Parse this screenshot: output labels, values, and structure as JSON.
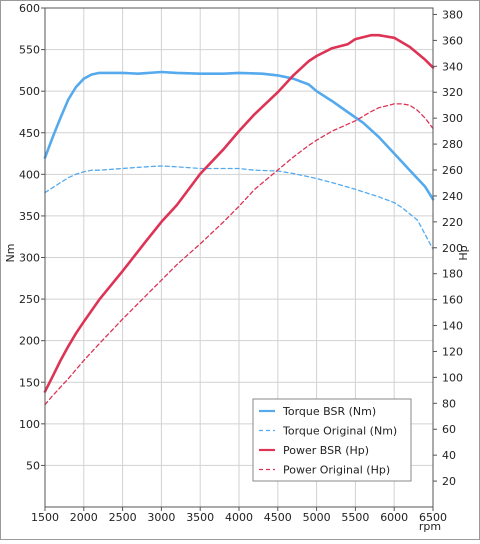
{
  "chart_data": {
    "type": "line",
    "xlabel": "rpm",
    "ylabel_left": "Nm",
    "ylabel_right": "Hp",
    "xlim": [
      1500,
      6500
    ],
    "ylim_left": [
      0,
      600
    ],
    "ylim_right": [
      0,
      385
    ],
    "x_ticks": [
      1500,
      2000,
      2500,
      3000,
      3500,
      4000,
      4500,
      5000,
      5500,
      6000,
      6500
    ],
    "y_left_ticks": [
      50,
      100,
      150,
      200,
      250,
      300,
      350,
      400,
      450,
      500,
      550,
      600
    ],
    "y_right_ticks": [
      20,
      40,
      60,
      80,
      100,
      120,
      140,
      160,
      180,
      200,
      220,
      240,
      260,
      280,
      300,
      320,
      340,
      360,
      380
    ],
    "grid": true,
    "legend_position": "bottom-right",
    "series": [
      {
        "name": "Torque BSR (Nm)",
        "axis": "left",
        "color": "#55aaee",
        "style": "solid",
        "x": [
          1500,
          1600,
          1700,
          1800,
          1900,
          2000,
          2100,
          2200,
          2300,
          2500,
          2700,
          3000,
          3200,
          3500,
          3800,
          4000,
          4300,
          4500,
          4700,
          4900,
          5000,
          5200,
          5400,
          5600,
          5800,
          6000,
          6200,
          6400,
          6500
        ],
        "y": [
          420,
          445,
          468,
          490,
          505,
          515,
          520,
          522,
          522,
          522,
          521,
          523,
          522,
          521,
          521,
          522,
          521,
          519,
          515,
          508,
          500,
          488,
          475,
          462,
          445,
          425,
          405,
          385,
          370
        ]
      },
      {
        "name": "Torque Original (Nm)",
        "axis": "left",
        "color": "#55aaee",
        "style": "dashed",
        "x": [
          1500,
          1600,
          1700,
          1800,
          1900,
          2000,
          2100,
          2200,
          2500,
          2800,
          3000,
          3200,
          3500,
          3800,
          4000,
          4200,
          4500,
          4700,
          5000,
          5200,
          5500,
          5800,
          6000,
          6100,
          6300,
          6500
        ],
        "y": [
          378,
          384,
          390,
          396,
          400,
          403,
          405,
          405,
          407,
          409,
          410,
          409,
          407,
          407,
          407,
          405,
          404,
          401,
          395,
          390,
          382,
          373,
          366,
          360,
          345,
          310
        ]
      },
      {
        "name": "Power BSR (Hp)",
        "axis": "right",
        "color": "#dd3355",
        "style": "solid",
        "x": [
          1500,
          1600,
          1700,
          1800,
          1900,
          2000,
          2200,
          2500,
          2800,
          3000,
          3200,
          3500,
          3800,
          4000,
          4200,
          4500,
          4700,
          4900,
          5000,
          5200,
          5400,
          5500,
          5700,
          5800,
          6000,
          6200,
          6400,
          6500
        ],
        "y": [
          89,
          101,
          113,
          124,
          134,
          143,
          160,
          182,
          205,
          220,
          233,
          257,
          276,
          290,
          303,
          320,
          333,
          344,
          348,
          354,
          357,
          361,
          364,
          364,
          362,
          355,
          345,
          339
        ]
      },
      {
        "name": "Power Original (Hp)",
        "axis": "right",
        "color": "#dd3355",
        "style": "dashed",
        "x": [
          1500,
          1600,
          1800,
          2000,
          2200,
          2500,
          2800,
          3000,
          3200,
          3500,
          3800,
          4000,
          4200,
          4500,
          4700,
          4900,
          5000,
          5200,
          5500,
          5700,
          5800,
          6000,
          6100,
          6200,
          6300,
          6400,
          6500
        ],
        "y": [
          79,
          86,
          99,
          113,
          126,
          145,
          163,
          175,
          187,
          203,
          220,
          232,
          245,
          260,
          270,
          279,
          283,
          290,
          298,
          305,
          308,
          311,
          311,
          310,
          306,
          300,
          292
        ]
      }
    ]
  }
}
